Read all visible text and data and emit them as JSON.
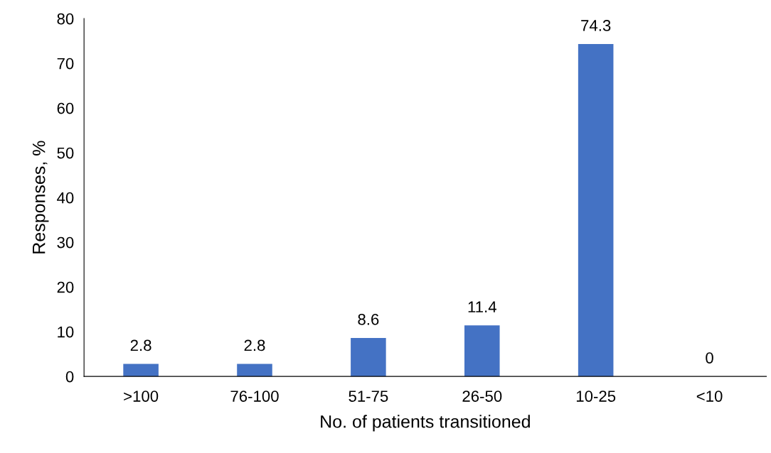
{
  "chart_data": {
    "type": "bar",
    "xlabel": "No. of patients transitioned",
    "ylabel": "Responses, %",
    "categories": [
      ">100",
      "76-100",
      "51-75",
      "26-50",
      "10-25",
      "<10"
    ],
    "values": [
      2.8,
      2.8,
      8.6,
      11.4,
      74.3,
      0
    ],
    "color": "#4472c4",
    "ylim": [
      0,
      80
    ],
    "yticks": [
      0,
      10,
      20,
      30,
      40,
      50,
      60,
      70,
      80
    ],
    "grid": false,
    "data_labels": true
  }
}
